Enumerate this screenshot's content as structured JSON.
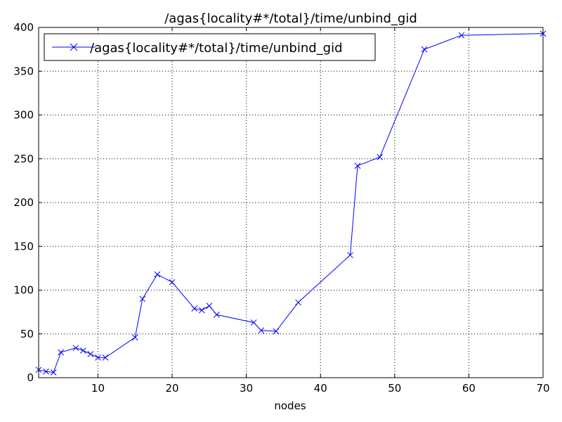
{
  "chart_data": {
    "type": "line",
    "title": "/agas{locality#*/total}/time/unbind_gid",
    "xlabel": "nodes",
    "ylabel": "",
    "xlim": [
      2,
      70
    ],
    "ylim": [
      0,
      400
    ],
    "x_ticks": [
      10,
      20,
      30,
      40,
      50,
      60,
      70
    ],
    "y_ticks": [
      0,
      50,
      100,
      150,
      200,
      250,
      300,
      350,
      400
    ],
    "grid": true,
    "legend_position": "top-left",
    "series": [
      {
        "name": "/agas{locality#*/total}/time/unbind_gid",
        "color": "#0000ff",
        "marker": "x",
        "x": [
          2,
          3,
          4,
          5,
          7,
          8,
          9,
          10,
          11,
          15,
          16,
          18,
          20,
          23,
          24,
          25,
          26,
          31,
          32,
          34,
          37,
          44,
          45,
          48,
          54,
          59,
          70
        ],
        "y": [
          9,
          7,
          6,
          29,
          34,
          31,
          27,
          23,
          23,
          46,
          90,
          118,
          109,
          79,
          77,
          82,
          72,
          63,
          54,
          53,
          86,
          140,
          242,
          252,
          375,
          391,
          393
        ]
      }
    ]
  }
}
